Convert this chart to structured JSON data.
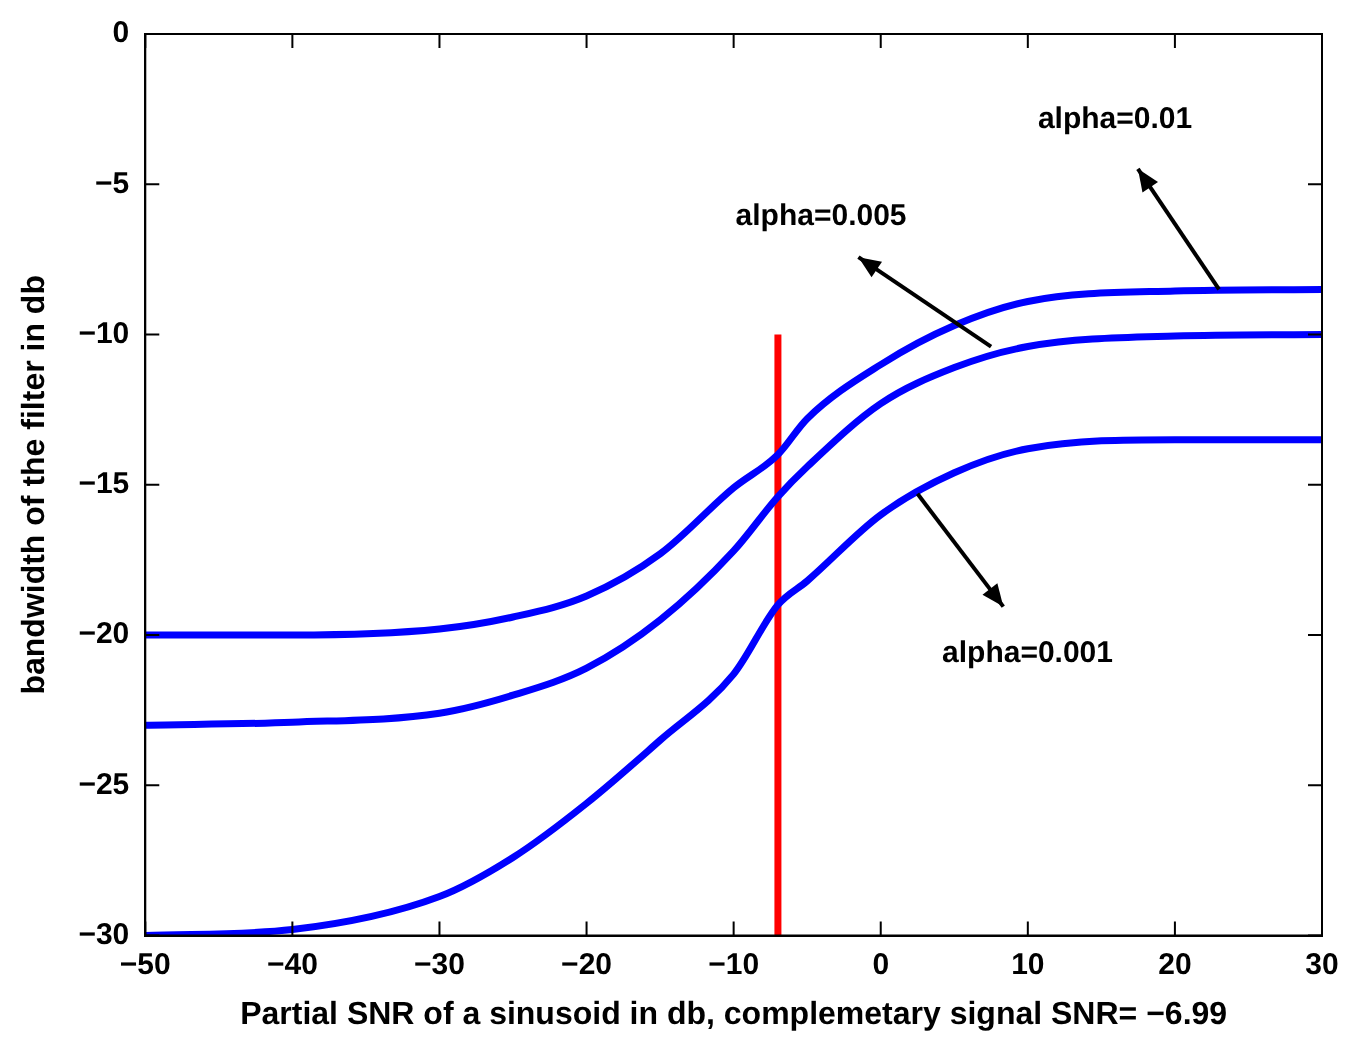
{
  "chart_data": {
    "type": "line",
    "xlabel": "Partial SNR of a sinusoid in db, complemetary signal SNR= −6.99",
    "ylabel": "bandwidth of the filter in db",
    "x": [
      -50,
      -40,
      -30,
      -25,
      -20,
      -15,
      -10,
      -7,
      -5,
      0,
      5,
      10,
      20,
      30
    ],
    "series": [
      {
        "color": "#0000ff",
        "values": [
          -20,
          -20,
          -19.8,
          -19.4,
          -18.7,
          -17.3,
          -15.1,
          -14,
          -12.8,
          -11,
          -9.7,
          -8.9,
          -8.55,
          -8.5
        ]
      },
      {
        "color": "#0000ff",
        "values": [
          -23,
          -22.9,
          -22.6,
          -22,
          -21.1,
          -19.5,
          -17.2,
          -15.4,
          -14.4,
          -12.3,
          -11.1,
          -10.4,
          -10.05,
          -10
        ]
      },
      {
        "color": "#0000ff",
        "values": [
          -30,
          -29.8,
          -28.7,
          -27.4,
          -25.6,
          -23.5,
          -21.3,
          -19,
          -18.2,
          -16,
          -14.6,
          -13.8,
          -13.5,
          -13.5
        ]
      },
      {
        "color": "#ff0000",
        "x": [
          -6.99,
          -6.99
        ],
        "values": [
          -30,
          -10
        ]
      }
    ],
    "xlim": [
      -50,
      30
    ],
    "xticks": [
      -50,
      -40,
      -30,
      -20,
      -10,
      0,
      10,
      20,
      30
    ],
    "ylim": [
      -30,
      0
    ],
    "yticks": [
      -30,
      -25,
      -20,
      -15,
      -10,
      -5,
      0
    ],
    "grid": false,
    "legend": false,
    "marker": "none",
    "line_style": "solid",
    "annotations": [
      {
        "text": "alpha=0.01",
        "x": 23,
        "y": -8.5
      },
      {
        "text": "alpha=0.005",
        "x": 7.5,
        "y": -10.4
      },
      {
        "text": "alpha=0.001",
        "x": 2.5,
        "y": -15.3
      }
    ]
  }
}
